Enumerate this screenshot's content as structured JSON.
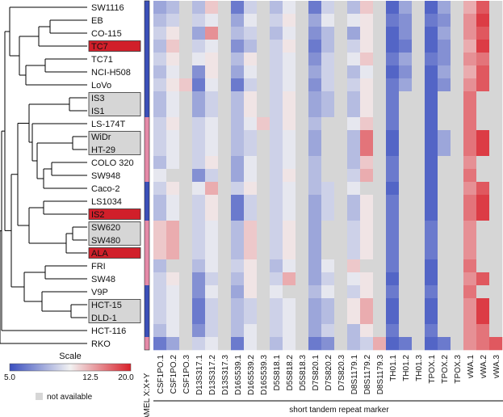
{
  "chart_data": {
    "type": "heatmap",
    "xlabel": "short tandem repeat marker",
    "amel_label": "AMEL X:X+Y",
    "legend": {
      "title": "Scale",
      "min": "5.0",
      "mid": "12.5",
      "max": "20.0",
      "vmin": 5,
      "vmax": 20,
      "na_label": "not available",
      "colors": {
        "low": "#3a4fbf",
        "mid": "#f2f2f2",
        "high": "#d9202a",
        "na": "#d6d6d6"
      }
    },
    "rows": [
      {
        "name": "SW1116",
        "highlight": "none",
        "amel": "xy"
      },
      {
        "name": "EB",
        "highlight": "none",
        "amel": "xy"
      },
      {
        "name": "CO-115",
        "highlight": "none",
        "amel": "xy"
      },
      {
        "name": "TC7",
        "highlight": "red",
        "amel": "xy"
      },
      {
        "name": "TC71",
        "highlight": "none",
        "amel": "xy"
      },
      {
        "name": "NCI-H508",
        "highlight": "none",
        "amel": "xy"
      },
      {
        "name": "LoVo",
        "highlight": "none",
        "amel": "xy"
      },
      {
        "name": "IS3",
        "highlight": "gray",
        "amel": "xy"
      },
      {
        "name": "IS1",
        "highlight": "gray",
        "amel": "xy"
      },
      {
        "name": "LS-174T",
        "highlight": "none",
        "amel": "x"
      },
      {
        "name": "WiDr",
        "highlight": "gray",
        "amel": "x"
      },
      {
        "name": "HT-29",
        "highlight": "gray",
        "amel": "x"
      },
      {
        "name": "COLO 320",
        "highlight": "none",
        "amel": "x"
      },
      {
        "name": "SW948",
        "highlight": "none",
        "amel": "x"
      },
      {
        "name": "Caco-2",
        "highlight": "none",
        "amel": "xy"
      },
      {
        "name": "LS1034",
        "highlight": "none",
        "amel": "xy"
      },
      {
        "name": "IS2",
        "highlight": "red",
        "amel": "xy"
      },
      {
        "name": "SW620",
        "highlight": "gray",
        "amel": "x"
      },
      {
        "name": "SW480",
        "highlight": "gray",
        "amel": "x"
      },
      {
        "name": "ALA",
        "highlight": "red",
        "amel": "x"
      },
      {
        "name": "FRI",
        "highlight": "none",
        "amel": "x"
      },
      {
        "name": "SW48",
        "highlight": "none",
        "amel": "x"
      },
      {
        "name": "V9P",
        "highlight": "none",
        "amel": "xy"
      },
      {
        "name": "HCT-15",
        "highlight": "gray",
        "amel": "xy"
      },
      {
        "name": "DLD-1",
        "highlight": "gray",
        "amel": "xy"
      },
      {
        "name": "HCT-116",
        "highlight": "none",
        "amel": "xy"
      },
      {
        "name": "RKO",
        "highlight": "none",
        "amel": "x"
      }
    ],
    "markers": [
      "CSF1PO.1",
      "CSF1PO.2",
      "CSF1PO.3",
      "D13S317.1",
      "D13S317.2",
      "D13S317.3",
      "D16S539.1",
      "D16S539.2",
      "D16S539.3",
      "D5S818.1",
      "D5S818.2",
      "D5S818.3",
      "D7S820.1",
      "D7S820.2",
      "D7S820.3",
      "D8S1179.1",
      "D8S1179.2",
      "D8S1179.3",
      "TH01.1",
      "TH01.2",
      "TH01.3",
      "TPOX.1",
      "TPOX.2",
      "TPOX.3",
      "vWA.1",
      "vWA.2",
      "vWA.3"
    ],
    "values": [
      [
        9,
        10,
        null,
        10,
        14,
        null,
        7,
        11,
        null,
        10,
        12,
        null,
        7,
        11,
        null,
        10,
        14,
        null,
        6,
        9,
        null,
        6,
        9,
        null,
        15,
        18,
        null
      ],
      [
        10,
        11,
        null,
        11,
        12,
        null,
        9,
        12,
        null,
        11,
        13,
        null,
        9,
        12,
        null,
        12,
        13,
        null,
        7,
        8,
        null,
        7,
        8,
        null,
        16,
        19,
        null
      ],
      [
        11,
        13,
        null,
        9,
        16,
        null,
        10,
        11,
        null,
        10,
        12,
        null,
        8,
        10,
        null,
        9,
        13,
        null,
        6,
        8,
        null,
        6,
        9,
        null,
        16,
        18,
        null
      ],
      [
        10,
        14,
        null,
        11,
        12,
        null,
        8,
        10,
        null,
        11,
        13,
        null,
        7,
        10,
        null,
        11,
        13,
        null,
        6,
        7,
        null,
        6,
        8,
        null,
        15,
        19,
        null
      ],
      [
        11,
        13,
        null,
        12,
        13,
        null,
        10,
        13,
        null,
        11,
        12,
        null,
        8,
        11,
        null,
        12,
        14,
        null,
        7,
        9,
        null,
        7,
        8,
        null,
        16,
        17,
        null
      ],
      [
        10,
        12,
        null,
        8,
        13,
        null,
        9,
        12,
        null,
        11,
        12,
        null,
        9,
        11,
        null,
        10,
        12,
        null,
        6,
        8,
        null,
        6,
        9,
        null,
        15,
        18,
        null
      ],
      [
        11,
        13,
        14,
        7,
        12,
        null,
        7,
        11,
        null,
        11,
        12,
        null,
        8,
        11,
        null,
        11,
        13,
        null,
        7,
        9,
        null,
        6,
        8,
        null,
        16,
        18,
        null
      ],
      [
        10,
        12,
        null,
        9,
        11,
        null,
        10,
        13,
        null,
        11,
        13,
        null,
        9,
        10,
        null,
        10,
        13,
        null,
        7,
        null,
        null,
        6,
        null,
        null,
        17,
        null,
        null
      ],
      [
        10,
        12,
        null,
        9,
        11,
        null,
        10,
        13,
        null,
        11,
        13,
        null,
        9,
        10,
        null,
        10,
        13,
        null,
        7,
        null,
        null,
        6,
        null,
        null,
        17,
        null,
        null
      ],
      [
        11,
        13,
        null,
        11,
        12,
        null,
        10,
        12,
        14,
        11,
        13,
        null,
        10,
        null,
        null,
        12,
        14,
        null,
        7,
        null,
        null,
        6,
        null,
        null,
        17,
        null,
        null
      ],
      [
        11,
        12,
        null,
        11,
        12,
        null,
        10,
        11,
        null,
        11,
        12,
        null,
        9,
        null,
        null,
        10,
        17,
        null,
        6,
        null,
        null,
        6,
        9,
        null,
        17,
        19,
        null
      ],
      [
        11,
        12,
        null,
        11,
        12,
        null,
        10,
        11,
        null,
        11,
        12,
        null,
        9,
        null,
        null,
        10,
        17,
        null,
        6,
        null,
        null,
        6,
        9,
        null,
        17,
        19,
        null
      ],
      [
        10,
        12,
        null,
        11,
        13,
        null,
        9,
        12,
        null,
        11,
        12,
        null,
        10,
        null,
        null,
        10,
        14,
        null,
        7,
        null,
        null,
        6,
        null,
        null,
        16,
        null,
        null
      ],
      [
        12,
        null,
        null,
        8,
        11,
        null,
        9,
        12,
        null,
        11,
        13,
        null,
        10,
        null,
        null,
        11,
        15,
        null,
        7,
        null,
        null,
        6,
        null,
        null,
        17,
        null,
        null
      ],
      [
        11,
        13,
        null,
        12,
        15,
        null,
        11,
        13,
        null,
        11,
        12,
        null,
        10,
        11,
        null,
        12,
        null,
        null,
        6,
        null,
        null,
        6,
        null,
        null,
        16,
        18,
        null
      ],
      [
        10,
        12,
        null,
        11,
        13,
        null,
        7,
        11,
        null,
        11,
        12,
        null,
        9,
        11,
        null,
        10,
        13,
        null,
        7,
        null,
        null,
        6,
        null,
        null,
        17,
        19,
        null
      ],
      [
        10,
        12,
        null,
        11,
        13,
        null,
        7,
        11,
        null,
        11,
        12,
        null,
        9,
        11,
        null,
        10,
        13,
        null,
        7,
        null,
        null,
        6,
        null,
        null,
        17,
        19,
        null
      ],
      [
        14,
        15,
        null,
        11,
        12,
        null,
        10,
        14,
        null,
        11,
        13,
        null,
        9,
        null,
        null,
        11,
        13,
        null,
        7,
        null,
        null,
        7,
        null,
        null,
        16,
        null,
        null
      ],
      [
        14,
        15,
        null,
        11,
        12,
        null,
        10,
        14,
        null,
        11,
        13,
        null,
        9,
        null,
        null,
        11,
        13,
        null,
        7,
        null,
        null,
        7,
        null,
        null,
        16,
        null,
        null
      ],
      [
        14,
        15,
        null,
        11,
        12,
        null,
        10,
        14,
        null,
        11,
        13,
        null,
        9,
        null,
        null,
        11,
        13,
        null,
        7,
        null,
        null,
        7,
        null,
        null,
        16,
        null,
        null
      ],
      [
        10,
        null,
        null,
        10,
        12,
        null,
        11,
        13,
        null,
        10,
        12,
        null,
        9,
        12,
        null,
        14,
        null,
        null,
        7,
        null,
        null,
        6,
        null,
        null,
        17,
        null,
        null
      ],
      [
        11,
        13,
        null,
        8,
        11,
        null,
        10,
        13,
        null,
        11,
        15,
        null,
        9,
        11,
        null,
        12,
        13,
        null,
        6,
        null,
        null,
        6,
        null,
        null,
        16,
        18,
        null
      ],
      [
        11,
        12,
        null,
        8,
        12,
        null,
        9,
        13,
        null,
        12,
        null,
        null,
        10,
        12,
        null,
        11,
        13,
        null,
        7,
        null,
        null,
        7,
        null,
        null,
        17,
        null,
        null
      ],
      [
        11,
        12,
        null,
        7,
        11,
        null,
        10,
        11,
        null,
        11,
        12,
        null,
        9,
        10,
        null,
        13,
        15,
        null,
        6,
        null,
        null,
        6,
        null,
        null,
        16,
        19,
        null
      ],
      [
        11,
        12,
        null,
        7,
        11,
        null,
        10,
        11,
        null,
        11,
        12,
        null,
        9,
        10,
        null,
        13,
        15,
        null,
        6,
        null,
        null,
        6,
        null,
        null,
        16,
        19,
        null
      ],
      [
        10,
        12,
        null,
        8,
        11,
        null,
        10,
        12,
        null,
        11,
        12,
        null,
        9,
        11,
        null,
        10,
        13,
        null,
        7,
        null,
        null,
        7,
        null,
        null,
        16,
        17,
        null
      ],
      [
        7,
        9,
        null,
        11,
        12,
        null,
        7,
        12,
        null,
        10,
        12,
        null,
        7,
        8,
        null,
        10,
        11,
        15,
        6,
        7,
        null,
        6,
        7,
        null,
        16,
        17,
        18
      ]
    ]
  }
}
